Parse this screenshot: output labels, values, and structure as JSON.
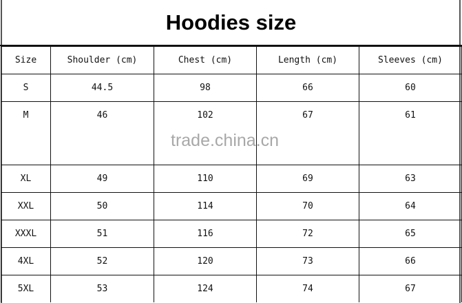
{
  "title": "Hoodies size",
  "columns": [
    "Size",
    "Shoulder (cm)",
    "Chest (cm)",
    "Length (cm)",
    "Sleeves (cm)"
  ],
  "rows": [
    [
      "S",
      "44.5",
      "98",
      "66",
      "60"
    ],
    [
      "M",
      "46",
      "102",
      "67",
      "61"
    ],
    [
      "XL",
      "49",
      "110",
      "69",
      "63"
    ],
    [
      "XXL",
      "50",
      "114",
      "70",
      "64"
    ],
    [
      "XXXL",
      "51",
      "116",
      "72",
      "65"
    ],
    [
      "4XL",
      "52",
      "120",
      "73",
      "66"
    ],
    [
      "5XL",
      "53",
      "124",
      "74",
      "67"
    ]
  ],
  "watermark": "trade.china.cn"
}
